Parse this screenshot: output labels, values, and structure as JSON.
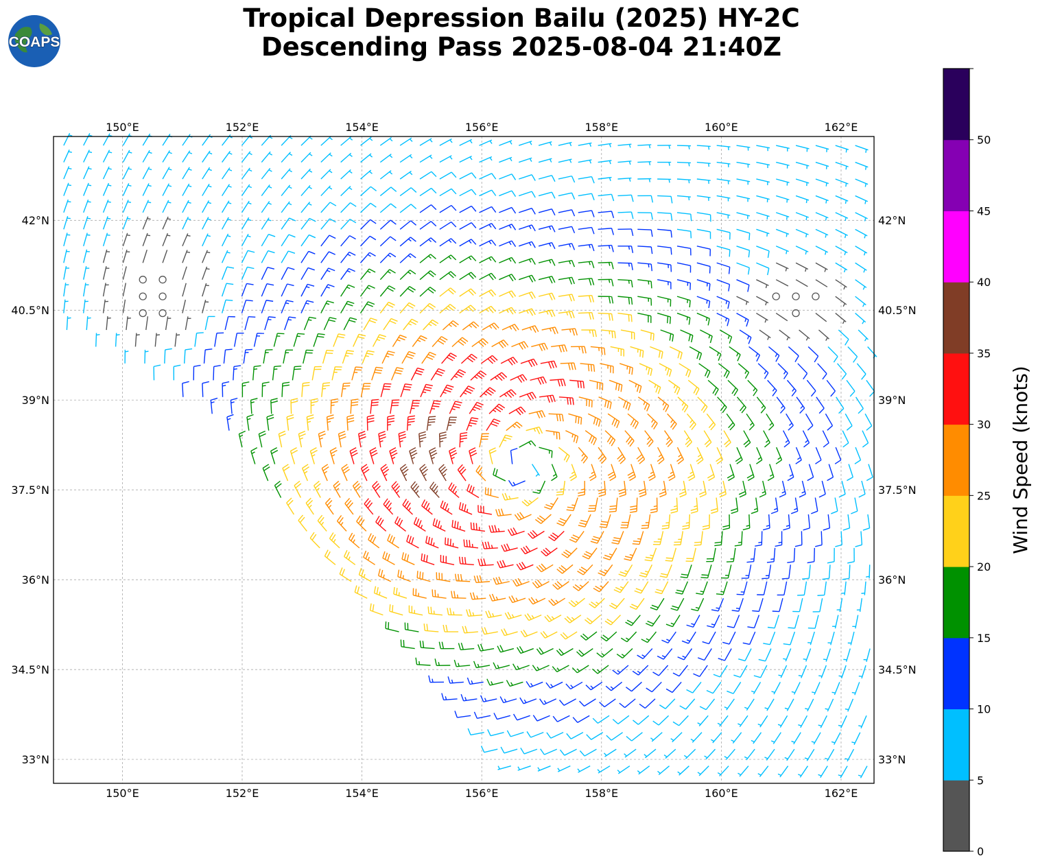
{
  "title": {
    "line1": "Tropical Depression Bailu (2025) HY-2C",
    "line2": "Descending Pass 2025-08-04 21:40Z"
  },
  "logo": {
    "text": "COAPS",
    "icon": "globe-icon"
  },
  "map": {
    "extent": {
      "lon_min": 148.85,
      "lon_max": 162.55,
      "lat_min": 32.6,
      "lat_max": 43.4
    },
    "lon_ticks": [
      {
        "value": 150,
        "label": "150°E"
      },
      {
        "value": 152,
        "label": "152°E"
      },
      {
        "value": 154,
        "label": "154°E"
      },
      {
        "value": 156,
        "label": "156°E"
      },
      {
        "value": 158,
        "label": "158°E"
      },
      {
        "value": 160,
        "label": "160°E"
      },
      {
        "value": 162,
        "label": "162°E"
      }
    ],
    "lat_ticks": [
      {
        "value": 33,
        "label": "33°N"
      },
      {
        "value": 34.5,
        "label": "34.5°N"
      },
      {
        "value": 36,
        "label": "36°N"
      },
      {
        "value": 37.5,
        "label": "37.5°N"
      },
      {
        "value": 39,
        "label": "39°N"
      },
      {
        "value": 40.5,
        "label": "40.5°N"
      },
      {
        "value": 42,
        "label": "42°N"
      }
    ],
    "gridlines": true,
    "storm_center": {
      "lon": 156.7,
      "lat": 37.9
    },
    "swath_west_edge": [
      {
        "lon": 148.9,
        "lat": 40.2
      },
      {
        "lon": 151.5,
        "lat": 38.7
      },
      {
        "lon": 153.2,
        "lat": 36.5
      },
      {
        "lon": 155.0,
        "lat": 34.6
      },
      {
        "lon": 156.6,
        "lat": 32.6
      }
    ],
    "calm_zones": [
      {
        "lon": 150.5,
        "lat": 40.8,
        "rlon": 1.0,
        "rlat": 1.1
      },
      {
        "lon": 161.2,
        "lat": 40.7,
        "rlon": 1.0,
        "rlat": 0.7
      }
    ]
  },
  "colorbar": {
    "label": "Wind Speed (knots)",
    "bins": [
      {
        "min": 0,
        "max": 5,
        "color": "#555555"
      },
      {
        "min": 5,
        "max": 10,
        "color": "#00bfff"
      },
      {
        "min": 10,
        "max": 15,
        "color": "#0033ff"
      },
      {
        "min": 15,
        "max": 20,
        "color": "#009100"
      },
      {
        "min": 20,
        "max": 25,
        "color": "#ffd11a"
      },
      {
        "min": 25,
        "max": 30,
        "color": "#ff8c00"
      },
      {
        "min": 30,
        "max": 35,
        "color": "#ff1010"
      },
      {
        "min": 35,
        "max": 40,
        "color": "#803d26"
      },
      {
        "min": 40,
        "max": 45,
        "color": "#ff00ff"
      },
      {
        "min": 45,
        "max": 50,
        "color": "#8500b3"
      },
      {
        "min": 50,
        "max": 55,
        "color": "#2a005c"
      }
    ],
    "ticks": [
      "0",
      "5",
      "10",
      "15",
      "20",
      "25",
      "30",
      "35",
      "40",
      "45",
      "50"
    ]
  }
}
